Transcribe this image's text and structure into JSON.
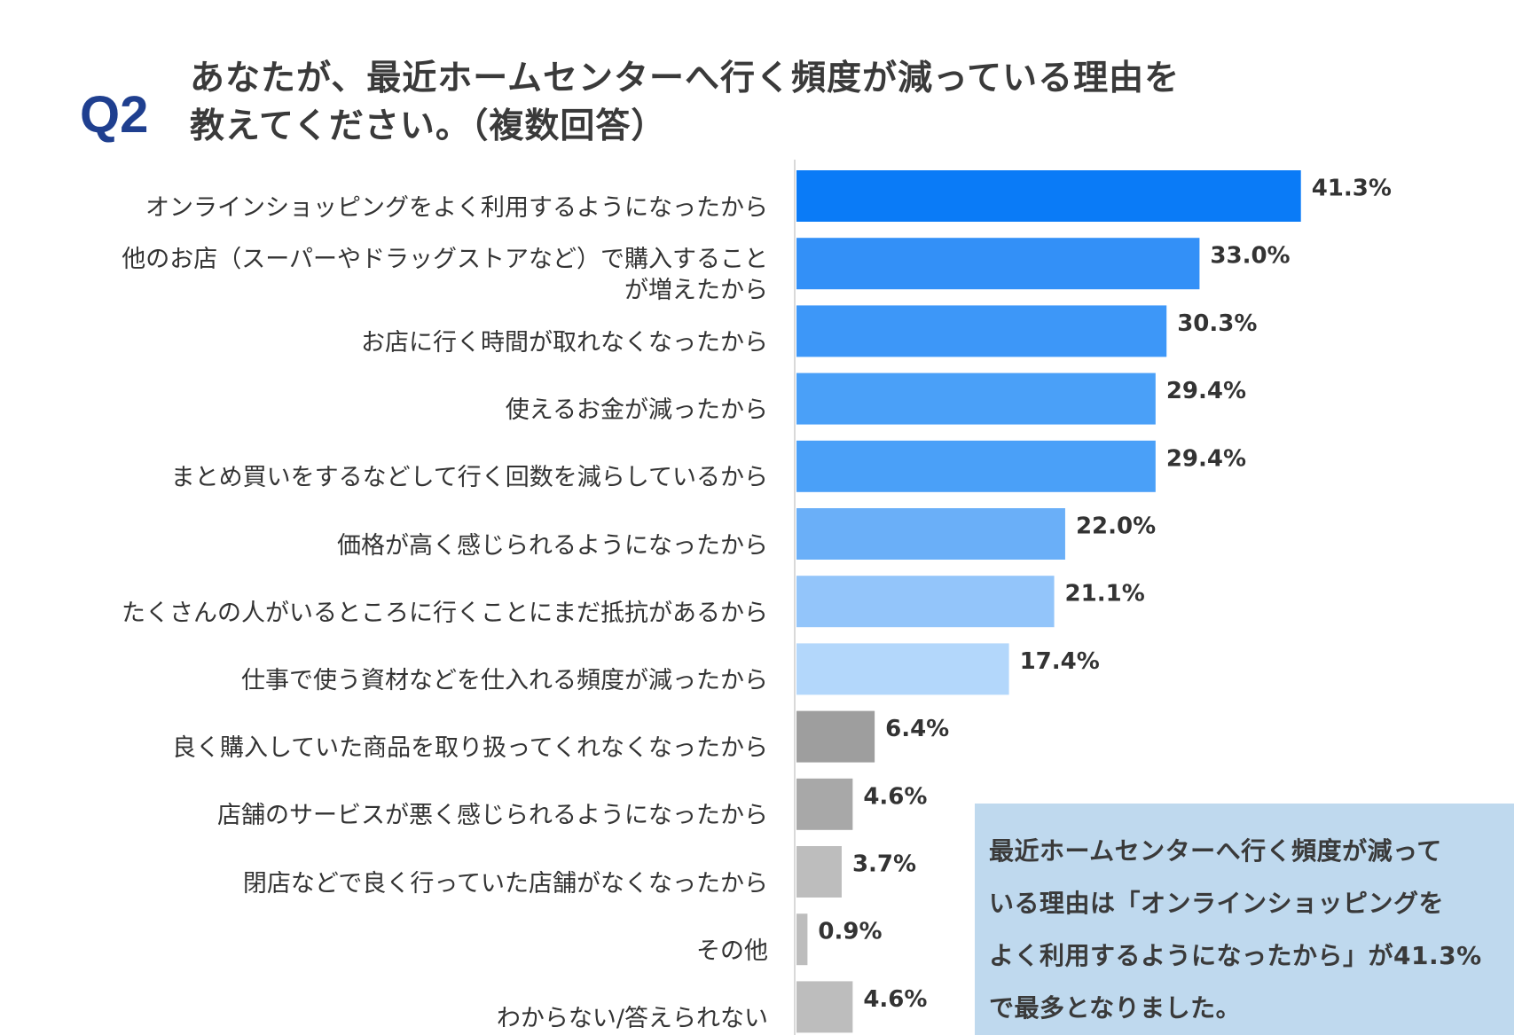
{
  "question_label": "Q2",
  "title_lines": [
    "あなたが、最近ホームセンターへ行く頻度が減っている理由を",
    "教えてください。（複数回答）"
  ],
  "chart_data": {
    "type": "bar",
    "orientation": "horizontal",
    "title": "あなたが、最近ホームセンターへ行く頻度が減っている理由を教えてください。（複数回答）",
    "unit": "%",
    "categories": [
      "オンラインショッピングをよく利用するようになったから",
      "他のお店（スーパーやドラッグストアなど）で購入すること\nが増えたから",
      "お店に行く時間が取れなくなったから",
      "使えるお金が減ったから",
      "まとめ買いをするなどして行く回数を減らしているから",
      "価格が高く感じられるようになったから",
      "たくさんの人がいるところに行くことにまだ抵抗があるから",
      "仕事で使う資材などを仕入れる頻度が減ったから",
      "良く購入していた商品を取り扱ってくれなくなったから",
      "店舗のサービスが悪く感じられるようになったから",
      "閉店などで良く行っていた店舗がなくなったから",
      "その他",
      "わからない/答えられない"
    ],
    "values": [
      41.3,
      33.0,
      30.3,
      29.4,
      29.4,
      22.0,
      21.1,
      17.4,
      6.4,
      4.6,
      3.7,
      0.9,
      4.6
    ],
    "value_labels": [
      "41.3%",
      "33.0%",
      "30.3%",
      "29.4%",
      "29.4%",
      "22.0%",
      "21.1%",
      "17.4%",
      "6.4%",
      "4.6%",
      "3.7%",
      "0.9%",
      "4.6%"
    ],
    "colors": [
      "#0a7bf7",
      "#3390f7",
      "#3d97f8",
      "#4aa0f8",
      "#4aa0f8",
      "#6aaff8",
      "#93c5fa",
      "#b3d7fb",
      "#9e9e9e",
      "#a8a8a8",
      "#bdbdbd",
      "#bdbdbd",
      "#bdbdbd"
    ],
    "xlim": [
      0,
      45
    ],
    "grid": false,
    "legend": "none"
  },
  "callout": {
    "lines": [
      "最近ホームセンターへ行く頻度が減って",
      "いる理由は「オンラインショッピングを",
      "よく利用するようになったから」が41.3%",
      "で最多となりました。"
    ],
    "background": "#bfd9ee"
  }
}
